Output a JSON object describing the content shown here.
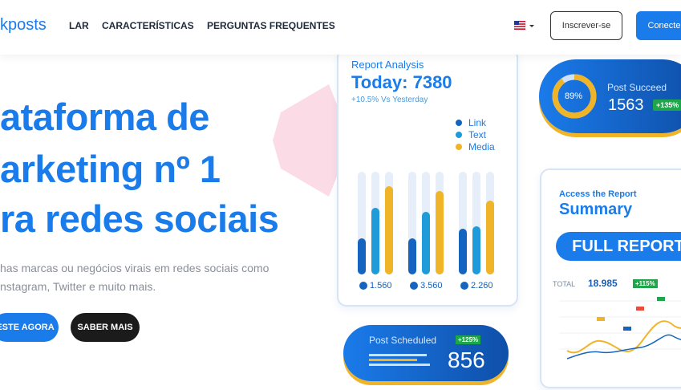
{
  "header": {
    "logo": "kposts",
    "nav": [
      "LAR",
      "CARACTERÍSTICAS",
      "PERGUNTAS FREQUENTES"
    ],
    "signup": "Inscrever-se",
    "connect": "Conecte"
  },
  "hero": {
    "headline": [
      "ataforma de",
      "arketing nº 1",
      "ra redes sociais"
    ],
    "subtitle": [
      "has marcas ou negócios virais em redes sociais como",
      "nstagram, Twitter e muito mais."
    ],
    "buttons": [
      "ESTE AGORA",
      "SABER MAIS"
    ]
  },
  "report_card": {
    "title": "Report Analysis",
    "today": "Today: 7380",
    "change": "+10.5% Vs Yesterday",
    "legend": [
      "Link",
      "Text",
      "Media"
    ],
    "counts": [
      "1.560",
      "3.560",
      "2.260"
    ]
  },
  "post_succeed": {
    "percent": "89%",
    "label": "Post Succeed",
    "value": "1563",
    "badge": "+135%"
  },
  "summary_card": {
    "kicker": "Access the Report",
    "title": "Summary",
    "button": "FULL REPORT",
    "total_label": "TOTAL",
    "total": "18.985",
    "badge": "+115%"
  },
  "post_scheduled": {
    "label": "Post Scheduled",
    "badge": "+125%",
    "value": "856"
  }
}
